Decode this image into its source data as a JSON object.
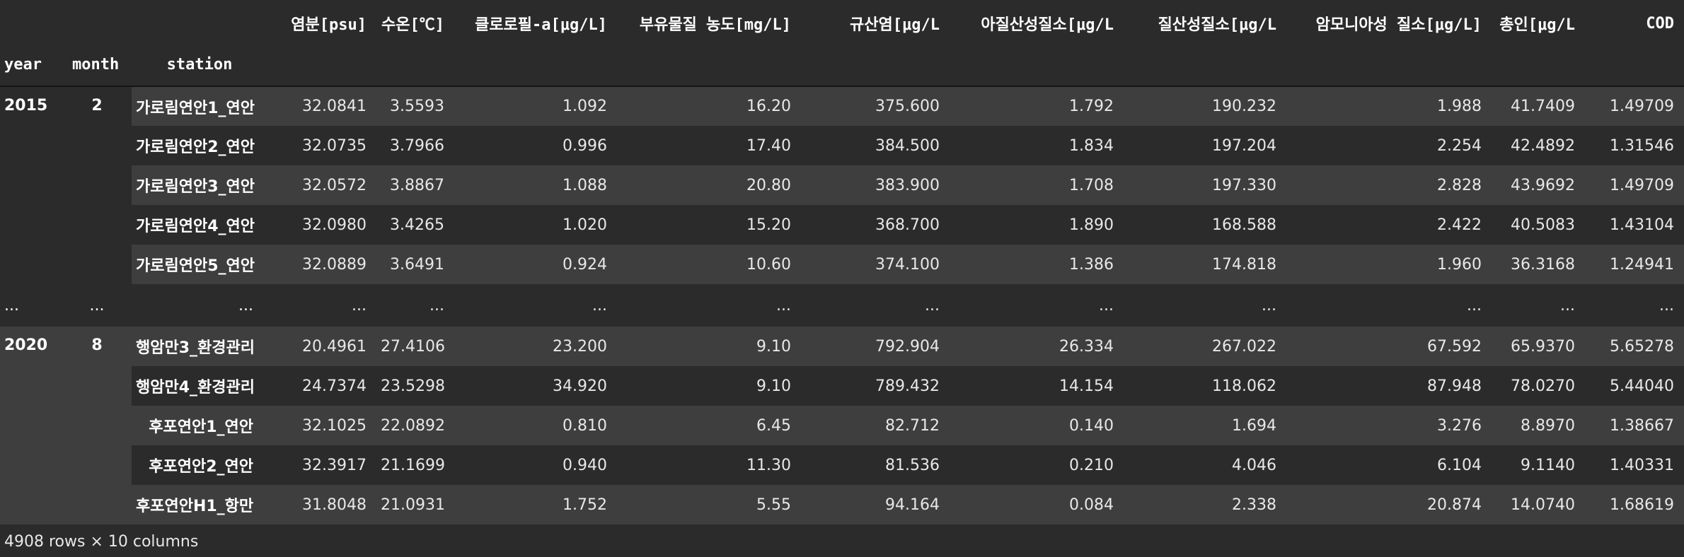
{
  "table": {
    "columns": [
      "염분[psu]",
      "수온[℃]",
      "클로로필-a[μg/L]",
      "부유물질 농도[mg/L]",
      "규산염[μg/L",
      "아질산성질소[μg/L",
      "질산성질소[μg/L",
      "암모니아성 질소[μg/L]",
      "총인[μg/L",
      "COD"
    ],
    "index_names": [
      "year",
      "month",
      "station"
    ],
    "groups": [
      {
        "year": "2015",
        "month": "2",
        "rows": [
          {
            "station": "가로림연안1_연안",
            "values": [
              "32.0841",
              "3.5593",
              "1.092",
              "16.20",
              "375.600",
              "1.792",
              "190.232",
              "1.988",
              "41.7409",
              "1.49709"
            ]
          },
          {
            "station": "가로림연안2_연안",
            "values": [
              "32.0735",
              "3.7966",
              "0.996",
              "17.40",
              "384.500",
              "1.834",
              "197.204",
              "2.254",
              "42.4892",
              "1.31546"
            ]
          },
          {
            "station": "가로림연안3_연안",
            "values": [
              "32.0572",
              "3.8867",
              "1.088",
              "20.80",
              "383.900",
              "1.708",
              "197.330",
              "2.828",
              "43.9692",
              "1.49709"
            ]
          },
          {
            "station": "가로림연안4_연안",
            "values": [
              "32.0980",
              "3.4265",
              "1.020",
              "15.20",
              "368.700",
              "1.890",
              "168.588",
              "2.422",
              "40.5083",
              "1.43104"
            ]
          },
          {
            "station": "가로림연안5_연안",
            "values": [
              "32.0889",
              "3.6491",
              "0.924",
              "10.60",
              "374.100",
              "1.386",
              "174.818",
              "1.960",
              "36.3168",
              "1.24941"
            ]
          }
        ]
      },
      {
        "year": "2020",
        "month": "8",
        "rows": [
          {
            "station": "행암만3_환경관리",
            "values": [
              "20.4961",
              "27.4106",
              "23.200",
              "9.10",
              "792.904",
              "26.334",
              "267.022",
              "67.592",
              "65.9370",
              "5.65278"
            ]
          },
          {
            "station": "행암만4_환경관리",
            "values": [
              "24.7374",
              "23.5298",
              "34.920",
              "9.10",
              "789.432",
              "14.154",
              "118.062",
              "87.948",
              "78.0270",
              "5.44040"
            ]
          },
          {
            "station": "후포연안1_연안",
            "values": [
              "32.1025",
              "22.0892",
              "0.810",
              "6.45",
              "82.712",
              "0.140",
              "1.694",
              "3.276",
              "8.8970",
              "1.38667"
            ]
          },
          {
            "station": "후포연안2_연안",
            "values": [
              "32.3917",
              "21.1699",
              "0.940",
              "11.30",
              "81.536",
              "0.210",
              "4.046",
              "6.104",
              "9.1140",
              "1.40331"
            ]
          },
          {
            "station": "후포연안H1_항만",
            "values": [
              "31.8048",
              "21.0931",
              "1.752",
              "5.55",
              "94.164",
              "0.084",
              "2.338",
              "20.874",
              "14.0740",
              "1.68619"
            ]
          }
        ]
      }
    ],
    "ellipsis": "..."
  },
  "footer": "4908 rows × 10 columns"
}
